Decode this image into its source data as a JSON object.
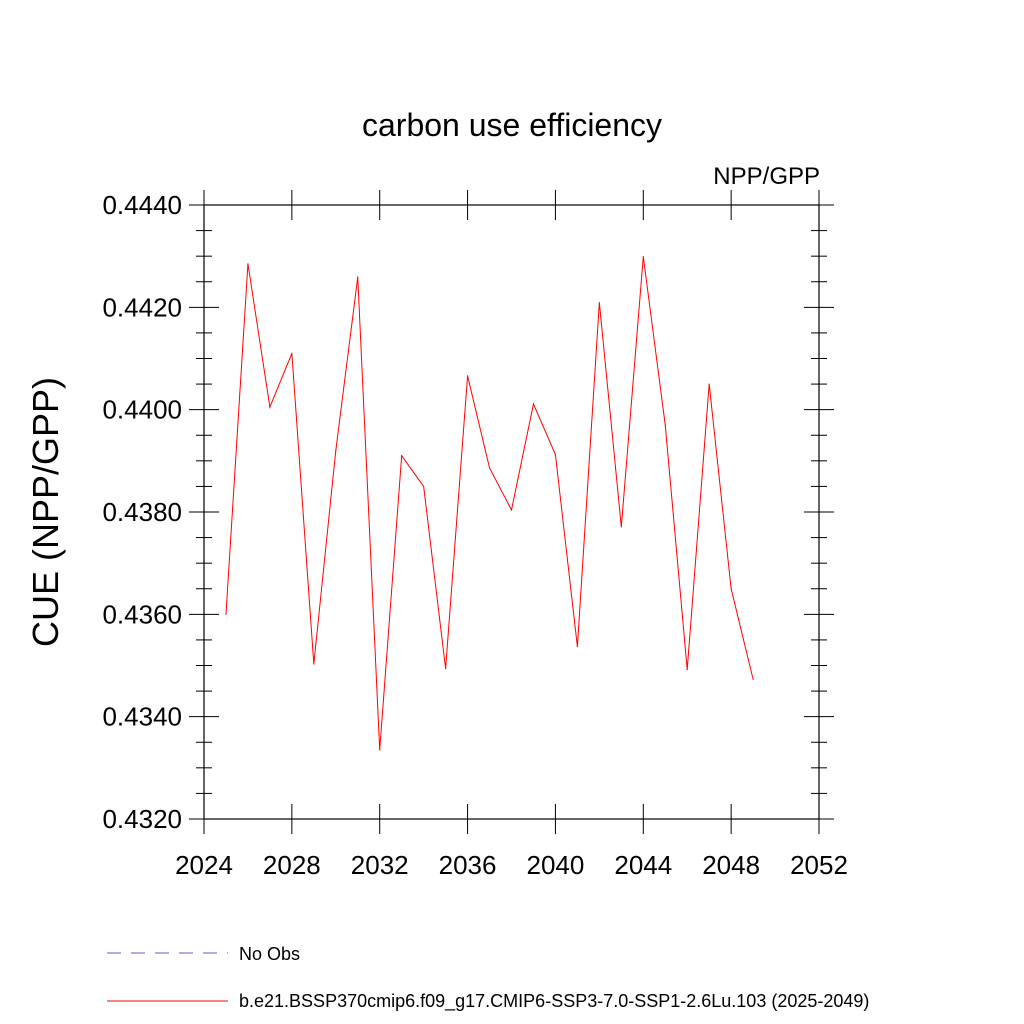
{
  "chart_data": {
    "type": "line",
    "title": "carbon use efficiency",
    "subtitle": "NPP/GPP",
    "xlabel": "",
    "ylabel": "CUE  (NPP/GPP)",
    "xlim": [
      2024,
      2052
    ],
    "ylim": [
      0.432,
      0.444
    ],
    "xticks": [
      2024,
      2028,
      2032,
      2036,
      2040,
      2044,
      2048,
      2052
    ],
    "yticks": [
      "0.4320",
      "0.4340",
      "0.4360",
      "0.4380",
      "0.4400",
      "0.4420",
      "0.4440"
    ],
    "series": [
      {
        "name": "b.e21.BSSP370cmip6.f09_g17.CMIP6-SSP3-7.0-SSP1-2.6Lu.103 (2025-2049)",
        "color": "#ff0000",
        "x": [
          2025,
          2026,
          2027,
          2028,
          2029,
          2030,
          2031,
          2032,
          2033,
          2034,
          2035,
          2036,
          2037,
          2038,
          2039,
          2040,
          2041,
          2042,
          2043,
          2044,
          2045,
          2046,
          2047,
          2048,
          2049
        ],
        "values": [
          0.436,
          0.44285,
          0.44005,
          0.4411,
          0.43503,
          0.4392,
          0.44259,
          0.43335,
          0.4391,
          0.4385,
          0.43494,
          0.44066,
          0.43886,
          0.43804,
          0.44011,
          0.43912,
          0.43537,
          0.44209,
          0.43771,
          0.44299,
          0.4397,
          0.43492,
          0.4405,
          0.4365,
          0.43473
        ]
      }
    ],
    "legend": [
      {
        "label": "No Obs",
        "color": "#6a5acd",
        "style": "dashed"
      },
      {
        "label": "b.e21.BSSP370cmip6.f09_g17.CMIP6-SSP3-7.0-SSP1-2.6Lu.103 (2025-2049)",
        "color": "#ff0000",
        "style": "solid"
      }
    ]
  }
}
